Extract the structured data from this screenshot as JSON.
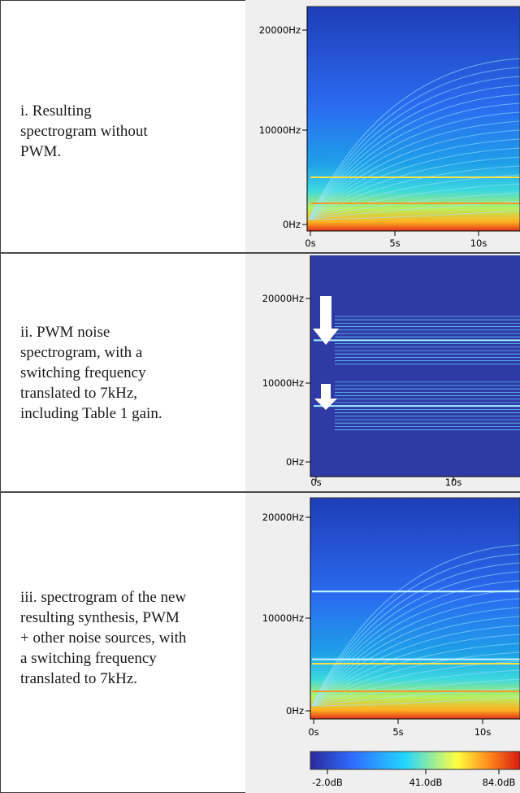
{
  "captions": {
    "row1": "i. Resulting\nspectrogram without\nPWM.",
    "row2": "ii. PWM noise\nspectrogram, with a\nswitching frequency\ntranslated to 7kHz,\nincluding Table 1 gain.",
    "row3": "iii. spectrogram of the new\nresulting synthesis, PWM\n+ other noise sources, with\na switching frequency\ntranslated to 7kHz."
  },
  "chart_data": [
    {
      "type": "heatmap",
      "title": "",
      "y_ticks": [
        "20000Hz",
        "10000Hz",
        "0Hz"
      ],
      "y_tick_values": [
        20000,
        10000,
        0
      ],
      "x_ticks": [
        "0s",
        "5s",
        "10s"
      ],
      "x_tick_values": [
        0,
        5,
        10
      ],
      "ylim": [
        0,
        22000
      ],
      "xlim": [
        0,
        12
      ]
    },
    {
      "type": "heatmap",
      "title": "",
      "y_ticks": [
        "20000Hz",
        "10000Hz",
        "0Hz"
      ],
      "y_tick_values": [
        20000,
        10000,
        0
      ],
      "x_ticks": [
        "0s",
        "10s"
      ],
      "x_tick_values": [
        0,
        10
      ],
      "ylim": [
        0,
        22000
      ],
      "xlim": [
        0,
        12
      ],
      "annotations": [
        "arrow at 14000Hz",
        "arrow at 7000Hz"
      ],
      "tonal_lines_hz": [
        14000,
        7000
      ]
    },
    {
      "type": "heatmap",
      "title": "",
      "y_ticks": [
        "20000Hz",
        "10000Hz",
        "0Hz"
      ],
      "y_tick_values": [
        20000,
        10000,
        0
      ],
      "x_ticks": [
        "0s",
        "5s",
        "10s"
      ],
      "x_tick_values": [
        0,
        5,
        10
      ],
      "ylim": [
        0,
        22000
      ],
      "xlim": [
        0,
        12
      ],
      "tonal_lines_hz": [
        14000,
        7000
      ]
    }
  ],
  "colorbar": {
    "labels": [
      "-2.0dB",
      "41.0dB",
      "84.0dB"
    ],
    "values": [
      -2.0,
      41.0,
      84.0
    ],
    "colors": [
      "#2a2a9a",
      "#2f6bff",
      "#22d5ff",
      "#ffff40",
      "#ff8a1a",
      "#d81a10"
    ]
  }
}
